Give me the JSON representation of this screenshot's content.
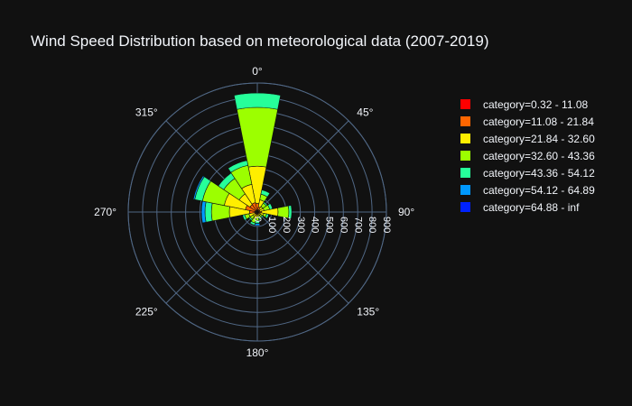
{
  "chart_data": {
    "type": "barpolar",
    "title": "Wind Speed Distribution based on meteorological data (2007-2019)",
    "angular_ticks": [
      "0°",
      "45°",
      "90°",
      "135°",
      "180°",
      "225°",
      "270°",
      "315°"
    ],
    "radial_ticks": [
      "0",
      "100",
      "200",
      "300",
      "400",
      "500",
      "600",
      "700",
      "800",
      "900"
    ],
    "radial_range": [
      0,
      900
    ],
    "angular_direction": "clockwise",
    "rotation": "north",
    "legend_position": "right",
    "sector_width_deg": 22.5,
    "directions": [
      0,
      22.5,
      45,
      67.5,
      90,
      112.5,
      135,
      157.5,
      180,
      202.5,
      225,
      247.5,
      270,
      292.5,
      315,
      337.5
    ],
    "series": [
      {
        "name": "category=0.32 - 11.08",
        "color": "#ff0000",
        "values": [
          15,
          12,
          8,
          6,
          10,
          6,
          4,
          4,
          5,
          8,
          6,
          5,
          15,
          15,
          12,
          12
        ]
      },
      {
        "name": "category=11.08 - 21.84",
        "color": "#ff6600",
        "values": [
          45,
          25,
          12,
          12,
          20,
          15,
          8,
          8,
          10,
          15,
          10,
          15,
          40,
          70,
          50,
          55
        ]
      },
      {
        "name": "category=21.84 - 32.60",
        "color": "#ffee00",
        "values": [
          260,
          50,
          25,
          30,
          115,
          25,
          15,
          15,
          20,
          25,
          20,
          40,
          140,
          150,
          90,
          130
        ]
      },
      {
        "name": "category=32.60 - 43.36",
        "color": "#9cff00",
        "values": [
          410,
          40,
          30,
          40,
          75,
          20,
          15,
          20,
          25,
          30,
          25,
          30,
          125,
          155,
          130,
          135
        ]
      },
      {
        "name": "category=43.36 - 54.12",
        "color": "#26ff9a",
        "values": [
          100,
          30,
          10,
          20,
          20,
          15,
          10,
          10,
          20,
          15,
          10,
          15,
          45,
          55,
          45,
          35
        ]
      },
      {
        "name": "category=54.12 - 64.89",
        "color": "#0099ff",
        "values": [
          0,
          0,
          0,
          0,
          0,
          0,
          0,
          0,
          15,
          0,
          0,
          0,
          25,
          10,
          0,
          0
        ]
      },
      {
        "name": "category=64.88 - inf",
        "color": "#0022ff",
        "values": [
          0,
          0,
          0,
          0,
          0,
          0,
          0,
          0,
          0,
          0,
          0,
          0,
          0,
          0,
          0,
          0
        ]
      }
    ]
  }
}
